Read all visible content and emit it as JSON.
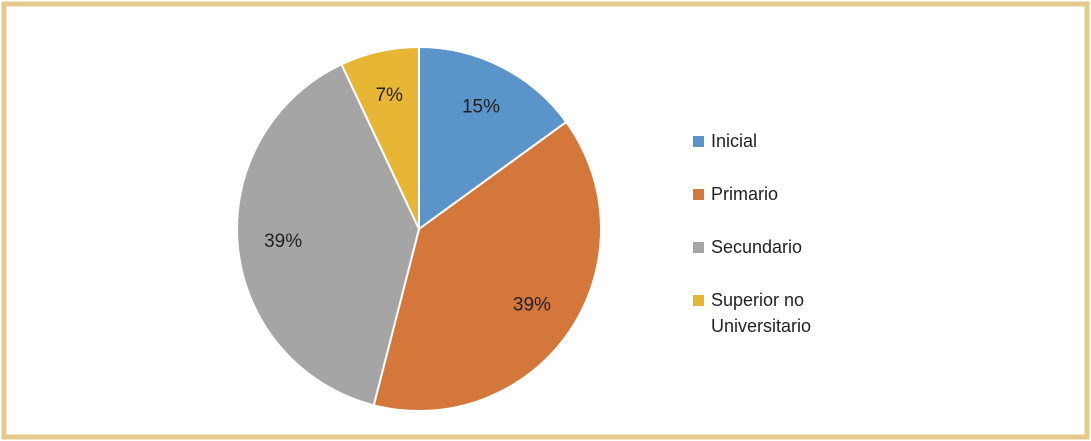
{
  "chart_data": {
    "type": "pie",
    "categories": [
      "Inicial",
      "Primario",
      "Secundario",
      "Superior no Universitario"
    ],
    "values": [
      15,
      39,
      39,
      7
    ],
    "value_labels": [
      "15%",
      "39%",
      "39%",
      "7%"
    ],
    "colors": [
      "#5a94c9",
      "#d3773b",
      "#a5a5a5",
      "#e6b634"
    ],
    "legend": "right"
  }
}
